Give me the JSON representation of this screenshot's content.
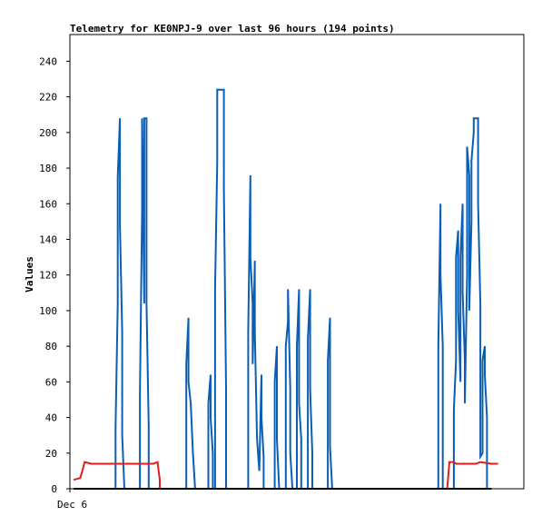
{
  "chart_data": {
    "type": "line",
    "title": "Telemetry for KE0NPJ-9 over last 96 hours (194 points)",
    "ylabel": "Values",
    "xlabel": "",
    "ylim": [
      0,
      255
    ],
    "yticks": [
      0,
      20,
      40,
      60,
      80,
      100,
      120,
      140,
      160,
      180,
      200,
      220,
      240
    ],
    "xticks": [
      {
        "x": 0,
        "label": "Dec 6"
      }
    ],
    "xlim": [
      0,
      193
    ],
    "colors": {
      "blue": "#0a5fb4",
      "red": "#e01e1e",
      "black": "#000000"
    },
    "series": [
      {
        "color": "#0a5fb4",
        "points": [
          [
            0,
            0
          ],
          [
            19,
            0
          ],
          [
            19,
            35
          ],
          [
            20,
            104
          ],
          [
            20,
            175
          ],
          [
            21,
            208
          ],
          [
            21,
            148
          ],
          [
            22,
            88
          ],
          [
            22,
            30
          ],
          [
            23,
            0
          ],
          [
            30,
            0
          ],
          [
            30,
            52
          ],
          [
            31,
            156
          ],
          [
            31,
            208
          ],
          [
            32,
            104
          ],
          [
            32,
            208
          ],
          [
            33,
            208
          ],
          [
            33,
            104
          ],
          [
            34,
            35
          ],
          [
            34,
            0
          ],
          [
            51,
            0
          ],
          [
            51,
            70
          ],
          [
            52,
            96
          ],
          [
            52,
            60
          ],
          [
            53,
            48
          ],
          [
            54,
            20
          ],
          [
            55,
            0
          ],
          [
            61,
            0
          ],
          [
            61,
            48
          ],
          [
            62,
            64
          ],
          [
            62,
            40
          ],
          [
            63,
            20
          ],
          [
            63,
            0
          ],
          [
            64,
            0
          ],
          [
            64,
            112
          ],
          [
            65,
            184
          ],
          [
            65,
            224
          ],
          [
            68,
            224
          ],
          [
            68,
            168
          ],
          [
            69,
            56
          ],
          [
            69,
            0
          ],
          [
            79,
            0
          ],
          [
            79,
            88
          ],
          [
            80,
            176
          ],
          [
            80,
            130
          ],
          [
            81,
            104
          ],
          [
            81,
            70
          ],
          [
            82,
            128
          ],
          [
            82,
            88
          ],
          [
            83,
            28
          ],
          [
            84,
            10
          ],
          [
            85,
            64
          ],
          [
            85,
            40
          ],
          [
            86,
            18
          ],
          [
            86,
            0
          ],
          [
            91,
            0
          ],
          [
            91,
            60
          ],
          [
            92,
            80
          ],
          [
            92,
            28
          ],
          [
            93,
            0
          ],
          [
            96,
            0
          ],
          [
            96,
            80
          ],
          [
            97,
            94
          ],
          [
            97,
            112
          ],
          [
            98,
            56
          ],
          [
            98,
            20
          ],
          [
            99,
            0
          ],
          [
            101,
            0
          ],
          [
            101,
            80
          ],
          [
            102,
            112
          ],
          [
            102,
            48
          ],
          [
            103,
            28
          ],
          [
            103,
            0
          ],
          [
            106,
            0
          ],
          [
            106,
            84
          ],
          [
            107,
            112
          ],
          [
            107,
            56
          ],
          [
            108,
            20
          ],
          [
            108,
            0
          ],
          [
            115,
            0
          ],
          [
            115,
            72
          ],
          [
            116,
            96
          ],
          [
            116,
            24
          ],
          [
            117,
            0
          ],
          [
            165,
            0
          ],
          [
            165,
            80
          ],
          [
            166,
            160
          ],
          [
            166,
            120
          ],
          [
            167,
            80
          ],
          [
            167,
            0
          ],
          [
            172,
            0
          ],
          [
            172,
            44
          ],
          [
            173,
            72
          ],
          [
            173,
            130
          ],
          [
            174,
            145
          ],
          [
            174,
            100
          ],
          [
            175,
            60
          ],
          [
            175,
            130
          ],
          [
            176,
            160
          ],
          [
            176,
            110
          ],
          [
            177,
            72
          ],
          [
            177,
            48
          ],
          [
            178,
            120
          ],
          [
            178,
            192
          ],
          [
            179,
            176
          ],
          [
            179,
            100
          ],
          [
            180,
            150
          ],
          [
            180,
            184
          ],
          [
            181,
            200
          ],
          [
            181,
            208
          ],
          [
            183,
            208
          ],
          [
            183,
            160
          ],
          [
            184,
            104
          ],
          [
            184,
            18
          ],
          [
            185,
            20
          ],
          [
            185,
            72
          ],
          [
            186,
            80
          ],
          [
            186,
            64
          ],
          [
            187,
            40
          ],
          [
            187,
            0
          ],
          [
            189,
            0
          ]
        ]
      },
      {
        "color": "#e01e1e",
        "points": [
          [
            0,
            5
          ],
          [
            3,
            6
          ],
          [
            4,
            10
          ],
          [
            5,
            15
          ],
          [
            8,
            14
          ],
          [
            19,
            14
          ],
          [
            26,
            14
          ],
          [
            36,
            14
          ],
          [
            38,
            15
          ],
          [
            39,
            5
          ],
          [
            39,
            0
          ],
          [
            169,
            0
          ],
          [
            170,
            15
          ],
          [
            172,
            15
          ],
          [
            173,
            14
          ],
          [
            182,
            14
          ],
          [
            184,
            15
          ],
          [
            189,
            14
          ],
          [
            192,
            14
          ]
        ]
      },
      {
        "color": "#000000",
        "points": [
          [
            0,
            0
          ],
          [
            189,
            0
          ]
        ]
      }
    ]
  }
}
